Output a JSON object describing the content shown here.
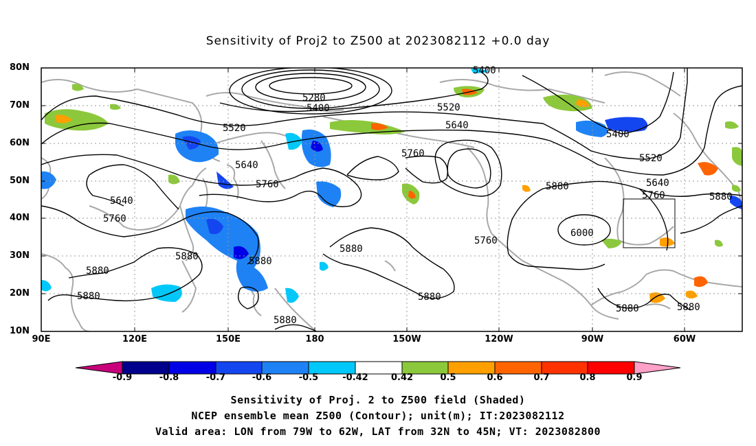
{
  "title": "Sensitivity of Proj2 to Z500 at 2023082112 +0.0 day",
  "lat_labels": [
    "80N",
    "70N",
    "60N",
    "50N",
    "40N",
    "30N",
    "20N",
    "10N"
  ],
  "lon_labels": [
    "90E",
    "120E",
    "150E",
    "180",
    "150W",
    "120W",
    "90W",
    "60W"
  ],
  "contour_labels": {
    "c5280": "5280",
    "c5400a": "5400",
    "c5400b": "5400",
    "c5400c": "5400",
    "c5520a": "5520",
    "c5520b": "5520",
    "c5520c": "5520",
    "c5640a": "5640",
    "c5640b": "5640",
    "c5640c": "5640",
    "c5640d": "5640",
    "c5760a": "5760",
    "c5760b": "5760",
    "c5760c": "5760",
    "c5760d": "5760",
    "c5760e": "5760",
    "c5880a": "5880",
    "c5880b": "5880",
    "c5880c": "5880",
    "c5880d": "5880",
    "c5880e": "5880",
    "c5880f": "5880",
    "c5880g": "5880",
    "c5880h": "5880",
    "c5880i": "5880",
    "c5880j": "5880",
    "c6000": "6000"
  },
  "colorbar": {
    "labels": [
      "-0.9",
      "-0.8",
      "-0.7",
      "-0.6",
      "-0.5",
      "-0.42",
      "0.42",
      "0.5",
      "0.6",
      "0.7",
      "0.8",
      "0.9"
    ],
    "colors": [
      "#c8007a",
      "#00008c",
      "#0000e6",
      "#1446f0",
      "#1e82f5",
      "#00c8fa",
      "#ffffff",
      "#8cc83c",
      "#ffa000",
      "#ff6400",
      "#ff3200",
      "#ff0000",
      "#ffa0c8"
    ]
  },
  "valid_box": {
    "lon": [
      -79,
      -62
    ],
    "lat": [
      32,
      45
    ]
  },
  "captions": {
    "line1": "Sensitivity of Proj. 2 to Z500 field (Shaded)",
    "line2": "NCEP ensemble mean Z500 (Contour); unit(m); IT:2023082112",
    "line3": "Valid area: LON from 79W to 62W, LAT from 32N to 45N; VT: 2023082800"
  }
}
